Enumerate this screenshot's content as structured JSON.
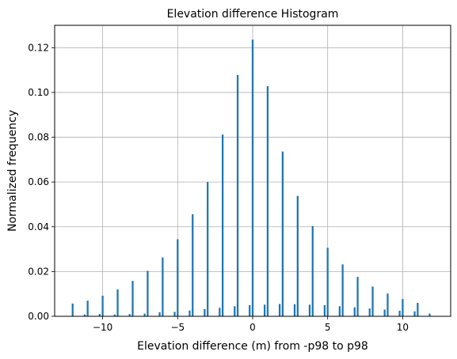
{
  "chart_data": {
    "type": "bar",
    "title": "Elevation difference Histogram",
    "xlabel": "Elevation difference (m) from -p98 to p98",
    "ylabel": "Normalized frequency",
    "xlim": [
      -13.2,
      13.2
    ],
    "ylim": [
      0,
      0.13
    ],
    "xticks": [
      -10,
      -5,
      0,
      5,
      10
    ],
    "xtick_labels": [
      "−10",
      "−5",
      "0",
      "5",
      "10"
    ],
    "yticks": [
      0,
      0.02,
      0.04,
      0.06,
      0.08,
      0.1,
      0.12
    ],
    "ytick_labels": [
      "0.00",
      "0.02",
      "0.04",
      "0.06",
      "0.08",
      "0.10",
      "0.12"
    ],
    "grid": true,
    "bar_color": "#1f77b4",
    "bin_width": 0.12,
    "series": [
      {
        "values": [
          {
            "x": -12.0,
            "y": 0.0057
          },
          {
            "x": -11.2,
            "y": 0.0008
          },
          {
            "x": -11.0,
            "y": 0.007
          },
          {
            "x": -10.2,
            "y": 0.001
          },
          {
            "x": -10.0,
            "y": 0.0092
          },
          {
            "x": -9.2,
            "y": 0.0008
          },
          {
            "x": -9.0,
            "y": 0.012
          },
          {
            "x": -8.2,
            "y": 0.001
          },
          {
            "x": -8.0,
            "y": 0.0158
          },
          {
            "x": -7.2,
            "y": 0.0012
          },
          {
            "x": -7.0,
            "y": 0.0203
          },
          {
            "x": -6.2,
            "y": 0.0018
          },
          {
            "x": -6.0,
            "y": 0.0263
          },
          {
            "x": -5.2,
            "y": 0.002
          },
          {
            "x": -5.0,
            "y": 0.0344
          },
          {
            "x": -4.2,
            "y": 0.0026
          },
          {
            "x": -4.0,
            "y": 0.0456
          },
          {
            "x": -3.2,
            "y": 0.0032
          },
          {
            "x": -3.0,
            "y": 0.06
          },
          {
            "x": -2.2,
            "y": 0.0038
          },
          {
            "x": -2.0,
            "y": 0.0812
          },
          {
            "x": -1.2,
            "y": 0.0045
          },
          {
            "x": -1.0,
            "y": 0.1078
          },
          {
            "x": -0.2,
            "y": 0.005
          },
          {
            "x": 0.0,
            "y": 0.1236
          },
          {
            "x": 0.8,
            "y": 0.0052
          },
          {
            "x": 1.0,
            "y": 0.1028
          },
          {
            "x": 1.8,
            "y": 0.0055
          },
          {
            "x": 2.0,
            "y": 0.0736
          },
          {
            "x": 2.8,
            "y": 0.0054
          },
          {
            "x": 3.0,
            "y": 0.0538
          },
          {
            "x": 3.8,
            "y": 0.0052
          },
          {
            "x": 4.0,
            "y": 0.0403
          },
          {
            "x": 4.8,
            "y": 0.005
          },
          {
            "x": 5.0,
            "y": 0.0306
          },
          {
            "x": 5.8,
            "y": 0.0045
          },
          {
            "x": 6.0,
            "y": 0.0232
          },
          {
            "x": 6.8,
            "y": 0.004
          },
          {
            "x": 7.0,
            "y": 0.0176
          },
          {
            "x": 7.8,
            "y": 0.0035
          },
          {
            "x": 8.0,
            "y": 0.0133
          },
          {
            "x": 8.8,
            "y": 0.003
          },
          {
            "x": 9.0,
            "y": 0.0102
          },
          {
            "x": 9.8,
            "y": 0.0025
          },
          {
            "x": 10.0,
            "y": 0.0077
          },
          {
            "x": 10.8,
            "y": 0.0022
          },
          {
            "x": 11.0,
            "y": 0.006
          },
          {
            "x": 11.8,
            "y": 0.0012
          }
        ]
      }
    ]
  }
}
